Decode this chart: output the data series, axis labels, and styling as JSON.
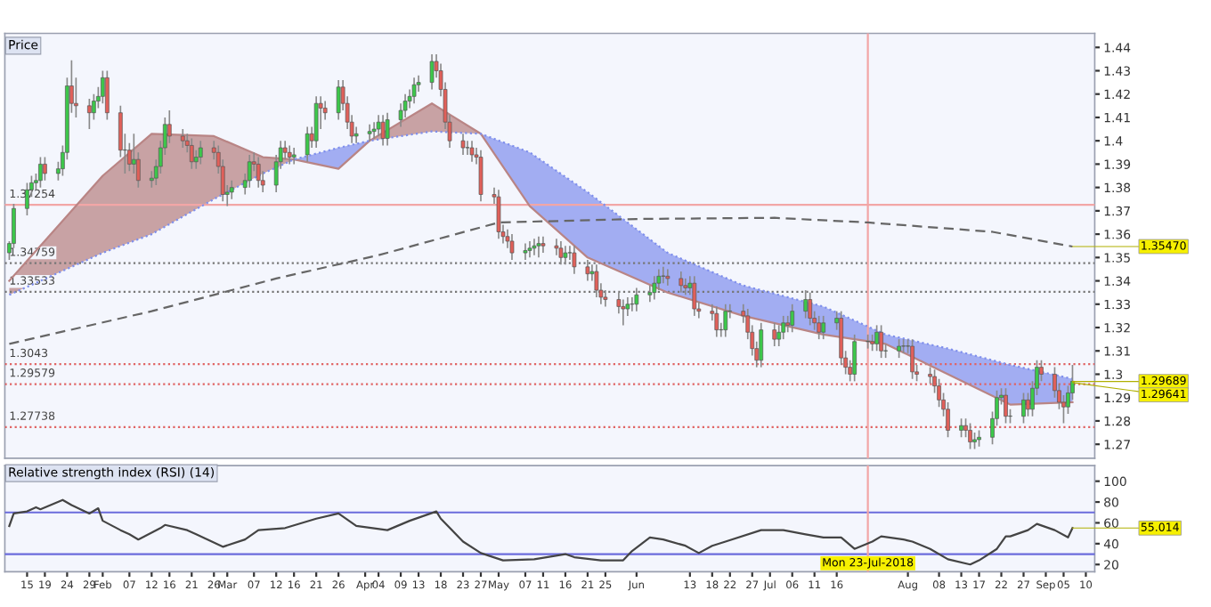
{
  "chart_data": [
    {
      "type": "candlestick",
      "title": "Price",
      "x": [
        "2018-01-11",
        "2018-01-12",
        "2018-01-15",
        "2018-01-16",
        "2018-01-17",
        "2018-01-18",
        "2018-01-19",
        "2018-01-22",
        "2018-01-23",
        "2018-01-24",
        "2018-01-25",
        "2018-01-26",
        "2018-01-29",
        "2018-01-30",
        "2018-01-31",
        "2018-02-01",
        "2018-02-02",
        "2018-02-05",
        "2018-02-06",
        "2018-02-07",
        "2018-02-08",
        "2018-02-09",
        "2018-02-12",
        "2018-02-13",
        "2018-02-14",
        "2018-02-15",
        "2018-02-16",
        "2018-02-19",
        "2018-02-20",
        "2018-02-21",
        "2018-02-22",
        "2018-02-23",
        "2018-02-26",
        "2018-02-27",
        "2018-02-28",
        "2018-03-01",
        "2018-03-02",
        "2018-03-05",
        "2018-03-06",
        "2018-03-07",
        "2018-03-08",
        "2018-03-09",
        "2018-03-12",
        "2018-03-13",
        "2018-03-14",
        "2018-03-15",
        "2018-03-16",
        "2018-03-19",
        "2018-03-20",
        "2018-03-21",
        "2018-03-22",
        "2018-03-23",
        "2018-03-26",
        "2018-03-27",
        "2018-03-28",
        "2018-03-29",
        "2018-03-30",
        "2018-04-02",
        "2018-04-03",
        "2018-04-04",
        "2018-04-05",
        "2018-04-06",
        "2018-04-09",
        "2018-04-10",
        "2018-04-11",
        "2018-04-12",
        "2018-04-13",
        "2018-04-16",
        "2018-04-17",
        "2018-04-18",
        "2018-04-19",
        "2018-04-20",
        "2018-04-23",
        "2018-04-24",
        "2018-04-25",
        "2018-04-26",
        "2018-04-27",
        "2018-04-30",
        "2018-05-01",
        "2018-05-02",
        "2018-05-03",
        "2018-05-04",
        "2018-05-07",
        "2018-05-08",
        "2018-05-09",
        "2018-05-10",
        "2018-05-11",
        "2018-05-14",
        "2018-05-15",
        "2018-05-16",
        "2018-05-17",
        "2018-05-18",
        "2018-05-21",
        "2018-05-22",
        "2018-05-23",
        "2018-05-24",
        "2018-05-25",
        "2018-05-28",
        "2018-05-29",
        "2018-05-30",
        "2018-05-31",
        "2018-06-01",
        "2018-06-04",
        "2018-06-05",
        "2018-06-06",
        "2018-06-07",
        "2018-06-08",
        "2018-06-11",
        "2018-06-12",
        "2018-06-13",
        "2018-06-14",
        "2018-06-15",
        "2018-06-18",
        "2018-06-19",
        "2018-06-20",
        "2018-06-21",
        "2018-06-22",
        "2018-06-25",
        "2018-06-26",
        "2018-06-27",
        "2018-06-28",
        "2018-06-29",
        "2018-07-02",
        "2018-07-03",
        "2018-07-04",
        "2018-07-05",
        "2018-07-06",
        "2018-07-09",
        "2018-07-10",
        "2018-07-11",
        "2018-07-12",
        "2018-07-13",
        "2018-07-16",
        "2018-07-17",
        "2018-07-18",
        "2018-07-19",
        "2018-07-20",
        "2018-07-23",
        "2018-07-24",
        "2018-07-25",
        "2018-07-26",
        "2018-07-27",
        "2018-07-30",
        "2018-07-31",
        "2018-08-01",
        "2018-08-02",
        "2018-08-03",
        "2018-08-06",
        "2018-08-07",
        "2018-08-08",
        "2018-08-09",
        "2018-08-10",
        "2018-08-13",
        "2018-08-14",
        "2018-08-15",
        "2018-08-16",
        "2018-08-17",
        "2018-08-20",
        "2018-08-21",
        "2018-08-22",
        "2018-08-23",
        "2018-08-24",
        "2018-08-27",
        "2018-08-28",
        "2018-08-29",
        "2018-08-30",
        "2018-08-31",
        "2018-09-03",
        "2018-09-04",
        "2018-09-05",
        "2018-09-06",
        "2018-09-07"
      ],
      "ohlc": [
        [
          1.352,
          1.357,
          1.349,
          1.356
        ],
        [
          1.356,
          1.373,
          1.354,
          1.371
        ],
        [
          1.371,
          1.382,
          1.368,
          1.379
        ],
        [
          1.379,
          1.385,
          1.376,
          1.382
        ],
        [
          1.382,
          1.386,
          1.379,
          1.383
        ],
        [
          1.383,
          1.393,
          1.38,
          1.39
        ],
        [
          1.39,
          1.393,
          1.383,
          1.386
        ],
        [
          1.386,
          1.391,
          1.383,
          1.388
        ],
        [
          1.388,
          1.398,
          1.385,
          1.395
        ],
        [
          1.395,
          1.427,
          1.392,
          1.4235
        ],
        [
          1.4235,
          1.4345,
          1.412,
          1.416
        ],
        [
          1.416,
          1.427,
          1.41,
          1.415
        ],
        [
          1.415,
          1.418,
          1.405,
          1.412
        ],
        [
          1.412,
          1.42,
          1.409,
          1.417
        ],
        [
          1.417,
          1.423,
          1.414,
          1.419
        ],
        [
          1.419,
          1.43,
          1.416,
          1.427
        ],
        [
          1.427,
          1.43,
          1.409,
          1.412
        ],
        [
          1.412,
          1.415,
          1.393,
          1.396
        ],
        [
          1.396,
          1.403,
          1.386,
          1.396
        ],
        [
          1.396,
          1.399,
          1.387,
          1.39
        ],
        [
          1.39,
          1.403,
          1.386,
          1.392
        ],
        [
          1.392,
          1.395,
          1.38,
          1.383
        ],
        [
          1.383,
          1.387,
          1.38,
          1.384
        ],
        [
          1.384,
          1.392,
          1.381,
          1.389
        ],
        [
          1.389,
          1.4,
          1.386,
          1.397
        ],
        [
          1.397,
          1.41,
          1.394,
          1.407
        ],
        [
          1.407,
          1.413,
          1.399,
          1.402
        ],
        [
          1.402,
          1.405,
          1.397,
          1.4
        ],
        [
          1.4,
          1.403,
          1.395,
          1.398
        ],
        [
          1.398,
          1.401,
          1.388,
          1.391
        ],
        [
          1.391,
          1.396,
          1.388,
          1.393
        ],
        [
          1.393,
          1.4,
          1.39,
          1.397
        ],
        [
          1.397,
          1.4,
          1.392,
          1.395
        ],
        [
          1.395,
          1.398,
          1.386,
          1.389
        ],
        [
          1.389,
          1.392,
          1.374,
          1.377
        ],
        [
          1.377,
          1.381,
          1.372,
          1.378
        ],
        [
          1.378,
          1.383,
          1.375,
          1.38
        ],
        [
          1.38,
          1.386,
          1.377,
          1.383
        ],
        [
          1.383,
          1.394,
          1.38,
          1.391
        ],
        [
          1.391,
          1.395,
          1.387,
          1.39
        ],
        [
          1.39,
          1.393,
          1.38,
          1.383
        ],
        [
          1.383,
          1.387,
          1.378,
          1.381
        ],
        [
          1.381,
          1.394,
          1.378,
          1.391
        ],
        [
          1.391,
          1.4,
          1.388,
          1.397
        ],
        [
          1.397,
          1.4,
          1.392,
          1.395
        ],
        [
          1.395,
          1.398,
          1.39,
          1.393
        ],
        [
          1.393,
          1.397,
          1.39,
          1.394
        ],
        [
          1.394,
          1.406,
          1.391,
          1.403
        ],
        [
          1.403,
          1.406,
          1.397,
          1.4
        ],
        [
          1.4,
          1.419,
          1.397,
          1.416
        ],
        [
          1.416,
          1.419,
          1.405,
          1.414
        ],
        [
          1.414,
          1.417,
          1.409,
          1.412
        ],
        [
          1.412,
          1.426,
          1.409,
          1.423
        ],
        [
          1.423,
          1.426,
          1.413,
          1.416
        ],
        [
          1.416,
          1.419,
          1.405,
          1.408
        ],
        [
          1.408,
          1.411,
          1.399,
          1.402
        ],
        [
          1.402,
          1.406,
          1.399,
          1.403
        ],
        [
          1.403,
          1.407,
          1.4,
          1.404
        ],
        [
          1.404,
          1.408,
          1.401,
          1.405
        ],
        [
          1.405,
          1.411,
          1.402,
          1.408
        ],
        [
          1.408,
          1.411,
          1.398,
          1.401
        ],
        [
          1.401,
          1.412,
          1.398,
          1.409
        ],
        [
          1.409,
          1.416,
          1.406,
          1.413
        ],
        [
          1.413,
          1.42,
          1.41,
          1.417
        ],
        [
          1.417,
          1.422,
          1.414,
          1.419
        ],
        [
          1.419,
          1.427,
          1.416,
          1.424
        ],
        [
          1.424,
          1.428,
          1.421,
          1.425
        ],
        [
          1.425,
          1.437,
          1.422,
          1.434
        ],
        [
          1.434,
          1.437,
          1.427,
          1.43
        ],
        [
          1.43,
          1.433,
          1.419,
          1.422
        ],
        [
          1.422,
          1.425,
          1.405,
          1.408
        ],
        [
          1.408,
          1.411,
          1.397,
          1.4
        ],
        [
          1.4,
          1.403,
          1.394,
          1.397
        ],
        [
          1.397,
          1.4,
          1.394,
          1.397
        ],
        [
          1.397,
          1.4,
          1.391,
          1.394
        ],
        [
          1.394,
          1.397,
          1.39,
          1.393
        ],
        [
          1.393,
          1.396,
          1.374,
          1.377
        ],
        [
          1.377,
          1.38,
          1.373,
          1.376
        ],
        [
          1.376,
          1.379,
          1.358,
          1.361
        ],
        [
          1.361,
          1.364,
          1.356,
          1.359
        ],
        [
          1.359,
          1.362,
          1.354,
          1.357
        ],
        [
          1.357,
          1.36,
          1.349,
          1.352
        ],
        [
          1.352,
          1.356,
          1.349,
          1.353
        ],
        [
          1.353,
          1.357,
          1.35,
          1.354
        ],
        [
          1.354,
          1.358,
          1.351,
          1.355
        ],
        [
          1.355,
          1.359,
          1.35,
          1.356
        ],
        [
          1.356,
          1.359,
          1.352,
          1.355
        ],
        [
          1.355,
          1.358,
          1.351,
          1.354
        ],
        [
          1.354,
          1.357,
          1.347,
          1.35
        ],
        [
          1.35,
          1.355,
          1.347,
          1.352
        ],
        [
          1.352,
          1.355,
          1.349,
          1.352
        ],
        [
          1.352,
          1.355,
          1.343,
          1.346
        ],
        [
          1.346,
          1.349,
          1.34,
          1.343
        ],
        [
          1.343,
          1.347,
          1.34,
          1.344
        ],
        [
          1.344,
          1.347,
          1.333,
          1.336
        ],
        [
          1.336,
          1.339,
          1.33,
          1.333
        ],
        [
          1.333,
          1.336,
          1.329,
          1.332
        ],
        [
          1.332,
          1.335,
          1.326,
          1.329
        ],
        [
          1.329,
          1.332,
          1.321,
          1.328
        ],
        [
          1.328,
          1.333,
          1.325,
          1.33
        ],
        [
          1.33,
          1.333,
          1.327,
          1.33
        ],
        [
          1.33,
          1.337,
          1.327,
          1.334
        ],
        [
          1.334,
          1.338,
          1.331,
          1.335
        ],
        [
          1.335,
          1.342,
          1.332,
          1.339
        ],
        [
          1.339,
          1.345,
          1.336,
          1.342
        ],
        [
          1.342,
          1.346,
          1.339,
          1.342
        ],
        [
          1.342,
          1.345,
          1.338,
          1.341
        ],
        [
          1.341,
          1.344,
          1.335,
          1.338
        ],
        [
          1.338,
          1.341,
          1.334,
          1.337
        ],
        [
          1.337,
          1.342,
          1.334,
          1.339
        ],
        [
          1.339,
          1.342,
          1.325,
          1.328
        ],
        [
          1.328,
          1.331,
          1.324,
          1.327
        ],
        [
          1.327,
          1.33,
          1.323,
          1.326
        ],
        [
          1.326,
          1.329,
          1.316,
          1.319
        ],
        [
          1.319,
          1.322,
          1.316,
          1.319
        ],
        [
          1.319,
          1.33,
          1.316,
          1.327
        ],
        [
          1.327,
          1.33,
          1.324,
          1.327
        ],
        [
          1.327,
          1.33,
          1.322,
          1.325
        ],
        [
          1.325,
          1.328,
          1.315,
          1.318
        ],
        [
          1.318,
          1.321,
          1.308,
          1.311
        ],
        [
          1.311,
          1.314,
          1.303,
          1.306
        ],
        [
          1.306,
          1.322,
          1.303,
          1.319
        ],
        [
          1.319,
          1.322,
          1.312,
          1.315
        ],
        [
          1.315,
          1.321,
          1.312,
          1.318
        ],
        [
          1.318,
          1.325,
          1.315,
          1.322
        ],
        [
          1.322,
          1.325,
          1.318,
          1.321
        ],
        [
          1.321,
          1.33,
          1.318,
          1.327
        ],
        [
          1.327,
          1.336,
          1.324,
          1.332
        ],
        [
          1.332,
          1.335,
          1.321,
          1.324
        ],
        [
          1.324,
          1.327,
          1.319,
          1.322
        ],
        [
          1.322,
          1.325,
          1.315,
          1.318
        ],
        [
          1.318,
          1.325,
          1.315,
          1.322
        ],
        [
          1.322,
          1.327,
          1.319,
          1.324
        ],
        [
          1.324,
          1.327,
          1.304,
          1.307
        ],
        [
          1.307,
          1.31,
          1.3,
          1.303
        ],
        [
          1.303,
          1.306,
          1.297,
          1.3
        ],
        [
          1.3,
          1.317,
          1.297,
          1.314
        ],
        [
          1.314,
          1.317,
          1.311,
          1.314
        ],
        [
          1.314,
          1.317,
          1.31,
          1.313
        ],
        [
          1.313,
          1.321,
          1.31,
          1.318
        ],
        [
          1.318,
          1.321,
          1.307,
          1.31
        ],
        [
          1.31,
          1.313,
          1.307,
          1.31
        ],
        [
          1.31,
          1.315,
          1.307,
          1.312
        ],
        [
          1.312,
          1.315,
          1.309,
          1.312
        ],
        [
          1.312,
          1.315,
          1.309,
          1.312
        ],
        [
          1.312,
          1.315,
          1.298,
          1.301
        ],
        [
          1.301,
          1.304,
          1.297,
          1.3
        ],
        [
          1.3,
          1.303,
          1.296,
          1.299
        ],
        [
          1.299,
          1.302,
          1.292,
          1.295
        ],
        [
          1.295,
          1.298,
          1.286,
          1.289
        ],
        [
          1.289,
          1.292,
          1.282,
          1.285
        ],
        [
          1.285,
          1.288,
          1.273,
          1.276
        ],
        [
          1.276,
          1.281,
          1.273,
          1.278
        ],
        [
          1.278,
          1.281,
          1.273,
          1.276
        ],
        [
          1.276,
          1.279,
          1.268,
          1.271
        ],
        [
          1.271,
          1.275,
          1.268,
          1.272
        ],
        [
          1.272,
          1.276,
          1.269,
          1.273
        ],
        [
          1.273,
          1.284,
          1.27,
          1.281
        ],
        [
          1.281,
          1.293,
          1.278,
          1.29
        ],
        [
          1.29,
          1.294,
          1.287,
          1.291
        ],
        [
          1.291,
          1.294,
          1.279,
          1.282
        ],
        [
          1.282,
          1.285,
          1.279,
          1.282
        ],
        [
          1.282,
          1.292,
          1.279,
          1.289
        ],
        [
          1.289,
          1.292,
          1.282,
          1.285
        ],
        [
          1.285,
          1.297,
          1.282,
          1.294
        ],
        [
          1.294,
          1.306,
          1.291,
          1.303
        ],
        [
          1.303,
          1.306,
          1.297,
          1.3
        ],
        [
          1.3,
          1.303,
          1.29,
          1.293
        ],
        [
          1.293,
          1.296,
          1.285,
          1.288
        ],
        [
          1.288,
          1.291,
          1.279,
          1.286
        ],
        [
          1.286,
          1.295,
          1.283,
          1.292
        ],
        [
          1.292,
          1.304,
          1.289,
          1.297
        ]
      ],
      "series": [
        {
          "type": "line",
          "color": "#b98585",
          "x": [
            "2018-01-11",
            "2018-02-01",
            "2018-02-12",
            "2018-02-26",
            "2018-03-09",
            "2018-03-16",
            "2018-03-26",
            "2018-04-02",
            "2018-04-16",
            "2018-04-27",
            "2018-05-08",
            "2018-05-21",
            "2018-06-08",
            "2018-06-25",
            "2018-07-13",
            "2018-07-27",
            "2018-08-10",
            "2018-08-24",
            "2018-09-07"
          ],
          "values": [
            1.34,
            1.385,
            1.403,
            1.402,
            1.393,
            1.392,
            1.388,
            1.4,
            1.416,
            1.403,
            1.372,
            1.35,
            1.335,
            1.325,
            1.317,
            1.313,
            1.3,
            1.287,
            1.288
          ]
        },
        {
          "type": "line",
          "color": "#7f8fec",
          "line_style": "dotted",
          "x": [
            "2018-01-11",
            "2018-02-01",
            "2018-02-12",
            "2018-02-26",
            "2018-03-09",
            "2018-03-16",
            "2018-03-26",
            "2018-04-02",
            "2018-04-16",
            "2018-04-27",
            "2018-05-08",
            "2018-05-21",
            "2018-06-08",
            "2018-06-25",
            "2018-07-13",
            "2018-07-27",
            "2018-08-10",
            "2018-08-24",
            "2018-09-07"
          ],
          "values": [
            1.334,
            1.352,
            1.36,
            1.375,
            1.386,
            1.392,
            1.397,
            1.4,
            1.404,
            1.403,
            1.395,
            1.378,
            1.352,
            1.338,
            1.329,
            1.317,
            1.311,
            1.304,
            1.298
          ]
        },
        {
          "type": "line",
          "color": "#666666",
          "line_style": "dashed",
          "x": [
            "2018-01-11",
            "2018-02-12",
            "2018-03-12",
            "2018-04-04",
            "2018-05-01",
            "2018-06-01",
            "2018-07-02",
            "2018-07-23",
            "2018-08-20",
            "2018-09-07"
          ],
          "values": [
            1.313,
            1.327,
            1.341,
            1.351,
            1.365,
            1.3665,
            1.367,
            1.365,
            1.361,
            1.3547
          ]
        }
      ],
      "xlim": [
        "2018-01-10",
        "2018-09-12"
      ],
      "ylim": [
        1.264,
        1.446
      ],
      "yticks": [
        1.27,
        1.28,
        1.29,
        1.3,
        1.31,
        1.32,
        1.33,
        1.34,
        1.35,
        1.36,
        1.37,
        1.38,
        1.39,
        1.4,
        1.41,
        1.42,
        1.43,
        1.44
      ],
      "tick_labels": "y",
      "ref_lines": [
        {
          "axis": "y",
          "value": 1.37254,
          "label": "1.37254",
          "color": "#f2a6a6",
          "line_style": "solid"
        },
        {
          "axis": "y",
          "value": 1.34759,
          "label": "1.34759",
          "color": "#777777",
          "line_style": "dotted"
        },
        {
          "axis": "y",
          "value": 1.33533,
          "label": "1.33533",
          "color": "#777777",
          "line_style": "dotted"
        },
        {
          "axis": "y",
          "value": 1.3043,
          "label": "1.3043",
          "color": "#e06464",
          "line_style": "dotted"
        },
        {
          "axis": "y",
          "value": 1.29579,
          "label": "1.29579",
          "color": "#e06464",
          "line_style": "dotted"
        },
        {
          "axis": "y",
          "value": 1.27738,
          "label": "1.27738",
          "color": "#e06464",
          "line_style": "dotted"
        },
        {
          "axis": "x",
          "value": "2018-07-23",
          "color": "#f2a6a6",
          "line_style": "solid"
        }
      ],
      "annotations": [
        {
          "text": "1.35470",
          "x": "2018-09-07",
          "y": 1.3547
        },
        {
          "text": "1.29689",
          "x": "2018-09-07",
          "y": 1.29689
        },
        {
          "text": "1.29641",
          "x": "2018-09-07",
          "y": 1.29641
        }
      ]
    },
    {
      "type": "line",
      "title": "Relative strength index (RSI) (14)",
      "series": [
        {
          "color": "#444444",
          "x": [
            "2018-01-11",
            "2018-01-12",
            "2018-01-15",
            "2018-01-17",
            "2018-01-18",
            "2018-01-23",
            "2018-01-25",
            "2018-01-29",
            "2018-01-31",
            "2018-02-01",
            "2018-02-05",
            "2018-02-07",
            "2018-02-09",
            "2018-02-14",
            "2018-02-15",
            "2018-02-20",
            "2018-02-22",
            "2018-02-28",
            "2018-03-05",
            "2018-03-08",
            "2018-03-14",
            "2018-03-21",
            "2018-03-26",
            "2018-03-30",
            "2018-04-06",
            "2018-04-11",
            "2018-04-17",
            "2018-04-18",
            "2018-04-23",
            "2018-04-27",
            "2018-05-02",
            "2018-05-09",
            "2018-05-16",
            "2018-05-18",
            "2018-05-24",
            "2018-05-29",
            "2018-05-31",
            "2018-06-04",
            "2018-06-07",
            "2018-06-12",
            "2018-06-15",
            "2018-06-18",
            "2018-06-21",
            "2018-06-29",
            "2018-07-04",
            "2018-07-09",
            "2018-07-13",
            "2018-07-17",
            "2018-07-20",
            "2018-07-24",
            "2018-07-26",
            "2018-07-31",
            "2018-08-02",
            "2018-08-06",
            "2018-08-10",
            "2018-08-15",
            "2018-08-17",
            "2018-08-21",
            "2018-08-23",
            "2018-08-24",
            "2018-08-28",
            "2018-08-30",
            "2018-09-03",
            "2018-09-06",
            "2018-09-07"
          ],
          "values": [
            57,
            69,
            71,
            75,
            73,
            82,
            77,
            69,
            74,
            62,
            53,
            49,
            44,
            55,
            58,
            53,
            49,
            37,
            44,
            53,
            55,
            64,
            69,
            57,
            53,
            62,
            71,
            64,
            42,
            31,
            24,
            25,
            30,
            27,
            24,
            24,
            33,
            46,
            44,
            38,
            31,
            38,
            42,
            53,
            53,
            49,
            46,
            46,
            35,
            42,
            47,
            44,
            42,
            35,
            25,
            20,
            24,
            35,
            47,
            47,
            53,
            59,
            53,
            46,
            55
          ]
        }
      ],
      "xlim": [
        "2018-01-10",
        "2018-09-12"
      ],
      "xticks": [
        {
          "value": "2018-01-15",
          "label": "15"
        },
        {
          "value": "2018-01-19",
          "label": "19"
        },
        {
          "value": "2018-01-24",
          "label": "24"
        },
        {
          "value": "2018-01-29",
          "label": "29"
        },
        {
          "value": "2018-02-01",
          "label": "Feb"
        },
        {
          "value": "2018-02-07",
          "label": "07"
        },
        {
          "value": "2018-02-12",
          "label": "12"
        },
        {
          "value": "2018-02-16",
          "label": "16"
        },
        {
          "value": "2018-02-21",
          "label": "21"
        },
        {
          "value": "2018-02-26",
          "label": "26"
        },
        {
          "value": "2018-03-01",
          "label": "Mar"
        },
        {
          "value": "2018-03-07",
          "label": "07"
        },
        {
          "value": "2018-03-12",
          "label": "12"
        },
        {
          "value": "2018-03-16",
          "label": "16"
        },
        {
          "value": "2018-03-21",
          "label": "21"
        },
        {
          "value": "2018-03-26",
          "label": "26"
        },
        {
          "value": "2018-04-01",
          "label": "Apr"
        },
        {
          "value": "2018-04-04",
          "label": "04"
        },
        {
          "value": "2018-04-09",
          "label": "09"
        },
        {
          "value": "2018-04-13",
          "label": "13"
        },
        {
          "value": "2018-04-18",
          "label": "18"
        },
        {
          "value": "2018-04-23",
          "label": "23"
        },
        {
          "value": "2018-04-27",
          "label": "27"
        },
        {
          "value": "2018-05-01",
          "label": "May"
        },
        {
          "value": "2018-05-07",
          "label": "07"
        },
        {
          "value": "2018-05-11",
          "label": "11"
        },
        {
          "value": "2018-05-16",
          "label": "16"
        },
        {
          "value": "2018-05-21",
          "label": "21"
        },
        {
          "value": "2018-05-25",
          "label": "25"
        },
        {
          "value": "2018-06-01",
          "label": "Jun"
        },
        {
          "value": "2018-06-13",
          "label": "13"
        },
        {
          "value": "2018-06-18",
          "label": "18"
        },
        {
          "value": "2018-06-22",
          "label": "22"
        },
        {
          "value": "2018-06-27",
          "label": "27"
        },
        {
          "value": "2018-07-01",
          "label": "Jul"
        },
        {
          "value": "2018-07-06",
          "label": "06"
        },
        {
          "value": "2018-07-11",
          "label": "11"
        },
        {
          "value": "2018-07-16",
          "label": "16"
        },
        {
          "value": "2018-08-01",
          "label": "Aug"
        },
        {
          "value": "2018-08-08",
          "label": "08"
        },
        {
          "value": "2018-08-13",
          "label": "13"
        },
        {
          "value": "2018-08-17",
          "label": "17"
        },
        {
          "value": "2018-08-22",
          "label": "22"
        },
        {
          "value": "2018-08-27",
          "label": "27"
        },
        {
          "value": "2018-09-01",
          "label": "Sep"
        },
        {
          "value": "2018-09-05",
          "label": "05"
        },
        {
          "value": "2018-09-10",
          "label": "10"
        }
      ],
      "ylim": [
        13,
        115
      ],
      "yticks": [
        20,
        40,
        60,
        80,
        100
      ],
      "ref_lines": [
        {
          "axis": "y",
          "value": 70,
          "color": "#6b6bdc",
          "line_style": "solid"
        },
        {
          "axis": "y",
          "value": 30,
          "color": "#6b6bdc",
          "line_style": "solid"
        },
        {
          "axis": "x",
          "value": "2018-07-23",
          "label": "Mon 23-Jul-2018",
          "color": "#f2a6a6",
          "line_style": "solid"
        }
      ],
      "annotations": [
        {
          "text": "55.014",
          "x": "2018-09-07",
          "y": 55.014
        }
      ]
    }
  ]
}
